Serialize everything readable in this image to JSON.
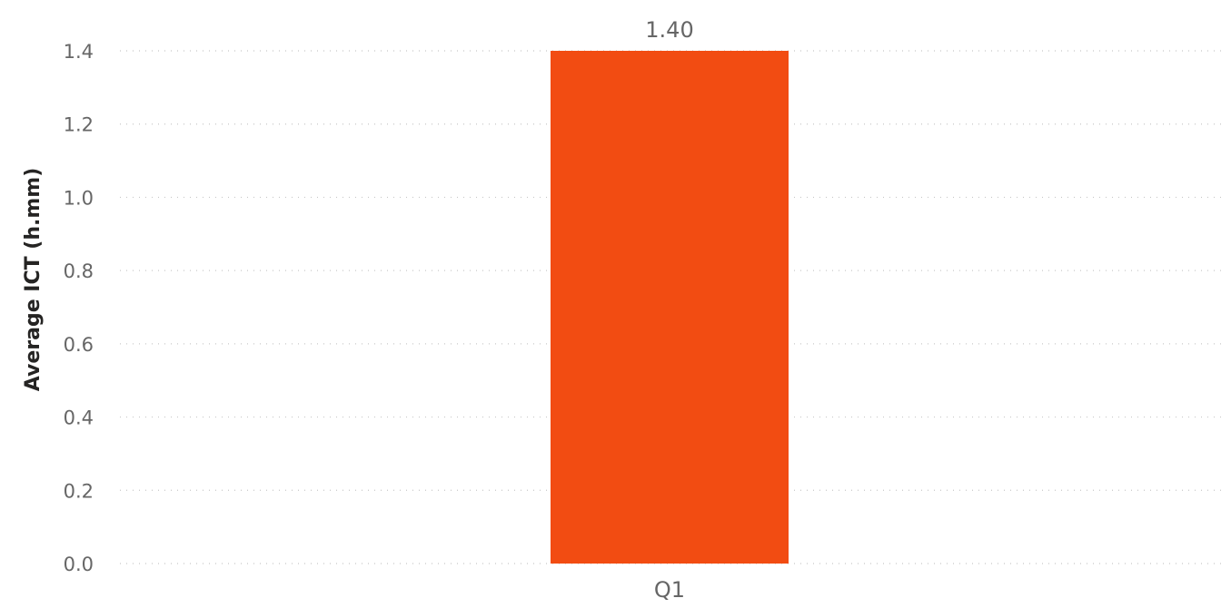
{
  "chart_data": {
    "type": "bar",
    "categories": [
      "Q1"
    ],
    "values": [
      1.4
    ],
    "data_labels": [
      "1.40"
    ],
    "title": "",
    "xlabel": "",
    "ylabel": "Average ICT (h.mm)",
    "ylim": [
      0,
      1.4
    ],
    "yticks": [
      "0.0",
      "0.2",
      "0.4",
      "0.6",
      "0.8",
      "1.0",
      "1.2",
      "1.4"
    ],
    "grid": true,
    "legend": "none",
    "bar_color": "#F24C12"
  }
}
